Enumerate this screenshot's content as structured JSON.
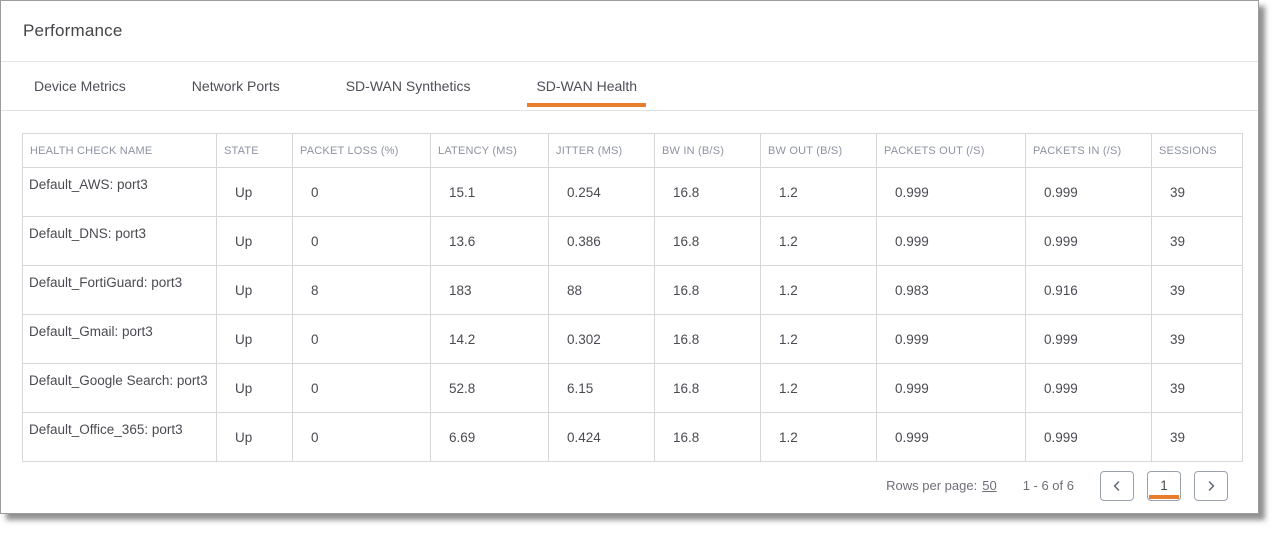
{
  "header": {
    "title": "Performance"
  },
  "tabs": [
    {
      "id": "device-metrics",
      "label": "Device Metrics",
      "active": false
    },
    {
      "id": "network-ports",
      "label": "Network Ports",
      "active": false
    },
    {
      "id": "sdwan-synthetics",
      "label": "SD-WAN Synthetics",
      "active": false
    },
    {
      "id": "sdwan-health",
      "label": "SD-WAN Health",
      "active": true
    }
  ],
  "table": {
    "columns": [
      "HEALTH CHECK NAME",
      "STATE",
      "PACKET LOSS (%)",
      "LATENCY (MS)",
      "JITTER (MS)",
      "BW IN (B/S)",
      "BW OUT (B/S)",
      "PACKETS OUT (/S)",
      "PACKETS IN (/S)",
      "SESSIONS"
    ],
    "rows": [
      [
        "Default_AWS: port3",
        "Up",
        "0",
        "15.1",
        "0.254",
        "16.8",
        "1.2",
        "0.999",
        "0.999",
        "39"
      ],
      [
        "Default_DNS: port3",
        "Up",
        "0",
        "13.6",
        "0.386",
        "16.8",
        "1.2",
        "0.999",
        "0.999",
        "39"
      ],
      [
        "Default_FortiGuard: port3",
        "Up",
        "8",
        "183",
        "88",
        "16.8",
        "1.2",
        "0.983",
        "0.916",
        "39"
      ],
      [
        "Default_Gmail: port3",
        "Up",
        "0",
        "14.2",
        "0.302",
        "16.8",
        "1.2",
        "0.999",
        "0.999",
        "39"
      ],
      [
        "Default_Google Search: port3",
        "Up",
        "0",
        "52.8",
        "6.15",
        "16.8",
        "1.2",
        "0.999",
        "0.999",
        "39"
      ],
      [
        "Default_Office_365: port3",
        "Up",
        "0",
        "6.69",
        "0.424",
        "16.8",
        "1.2",
        "0.999",
        "0.999",
        "39"
      ]
    ]
  },
  "pagination": {
    "rows_per_page_label": "Rows per page:",
    "rows_per_page_value": "50",
    "range_text": "1 - 6 of 6",
    "current_page": "1",
    "prev_icon": "chevron-left",
    "next_icon": "chevron-right"
  },
  "colors": {
    "accent": "#E87D2E"
  }
}
